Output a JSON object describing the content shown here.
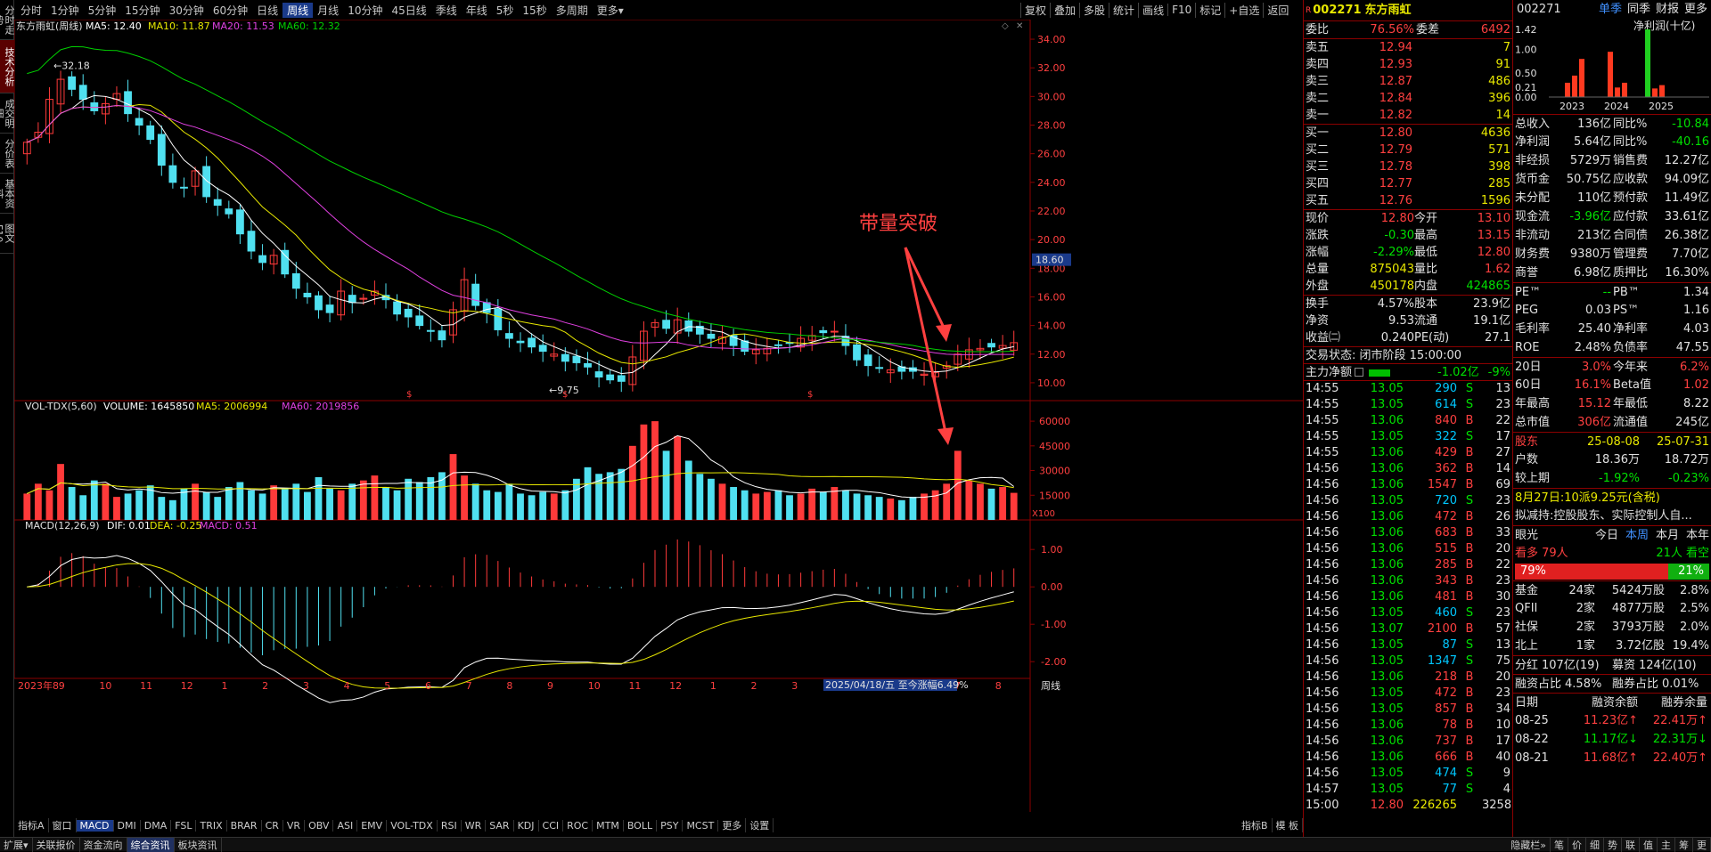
{
  "side_tabs": [
    "分时走势",
    "技术分析",
    "成交明细",
    "分价表",
    "基本资料",
    "图文F10"
  ],
  "side_active": 1,
  "periods": [
    "分时",
    "1分钟",
    "5分钟",
    "15分钟",
    "30分钟",
    "60分钟",
    "日线",
    "周线",
    "月线",
    "10分钟",
    "45日线",
    "季线",
    "年线",
    "5秒",
    "15秒",
    "多周期",
    "更多▾"
  ],
  "period_active": 7,
  "top_right": [
    "复权",
    "叠加",
    "多股",
    "统计",
    "画线",
    "F10",
    "标记",
    "+自选",
    "返回"
  ],
  "chart_legend": {
    "name": "东方雨虹(周线)",
    "ma5": "MA5: 12.40",
    "ma10": "MA10: 11.87",
    "ma20": "MA20: 11.53",
    "ma60": "MA60: 12.32",
    "vol": "VOL-TDX(5,60)",
    "volume": "VOLUME: 1645850",
    "vma5": "MA5: 2006994",
    "vma60": "MA60: 2019856",
    "macd": "MACD(12,26,9)",
    "dif": "DIF: 0.01",
    "dea": "DEA: -0.25",
    "macdv": "MACD: 0.51"
  },
  "annotations": {
    "breakout": "带量突破",
    "high": "32.18",
    "low": "9.75",
    "price_tag": "18.60",
    "range_info": "2025/04/18/五 至今涨幅6.49%",
    "x100": "X100",
    "corner_label": "周线"
  },
  "price_ticks": [
    "34.00",
    "32.00",
    "30.00",
    "28.00",
    "26.00",
    "24.00",
    "22.00",
    "20.00",
    "18.00",
    "16.00",
    "14.00",
    "12.00",
    "10.00"
  ],
  "vol_ticks": [
    "60000",
    "45000",
    "30000",
    "15000"
  ],
  "macd_ticks": [
    "1.00",
    "0.00",
    "-1.00",
    "-2.00"
  ],
  "x_labels": [
    "2023年8",
    "9",
    "10",
    "11",
    "12",
    "1",
    "2",
    "3",
    "4",
    "5",
    "6",
    "7",
    "8",
    "9",
    "10",
    "11",
    "12",
    "1",
    "2",
    "3",
    "4",
    "5",
    "6",
    "7",
    "8"
  ],
  "indicators": [
    "指标A",
    "窗口",
    "MACD",
    "DMI",
    "DMA",
    "FSL",
    "TRIX",
    "BRAR",
    "CR",
    "VR",
    "OBV",
    "ASI",
    "EMV",
    "VOL-TDX",
    "RSI",
    "WR",
    "SAR",
    "KDJ",
    "CCI",
    "ROC",
    "MTM",
    "BOLL",
    "PSY",
    "MCST",
    "更多",
    "设置"
  ],
  "indicator_active": 2,
  "indicator_right": [
    "指标B",
    "模 板"
  ],
  "chart_data": [
    {
      "type": "candlestick",
      "title": "东方雨虹(周线)",
      "period": "周线",
      "x": [
        "2023-08",
        "2023-09",
        "2023-10",
        "2023-11",
        "2023-12",
        "2024-01",
        "2024-02",
        "2024-03",
        "2024-04",
        "2024-05",
        "2024-06",
        "2024-07",
        "2024-08",
        "2024-09",
        "2024-10",
        "2024-11",
        "2024-12",
        "2025-01",
        "2025-02",
        "2025-03",
        "2025-04",
        "2025-05",
        "2025-06",
        "2025-07",
        "2025-08"
      ],
      "ylim": [
        9,
        34.5
      ],
      "weekly_close": [
        26.8,
        27.5,
        29.8,
        31.2,
        30.5,
        29.8,
        29.0,
        29.5,
        30.2,
        28.8,
        28.0,
        27.0,
        25.2,
        24.0,
        23.6,
        24.8,
        23.0,
        22.4,
        21.8,
        20.4,
        19.2,
        18.4,
        18.9,
        17.6,
        16.6,
        16.0,
        15.1,
        14.9,
        16.4,
        15.6,
        15.9,
        16.4,
        15.8,
        14.8,
        14.6,
        14.0,
        13.6,
        13.0,
        15.1,
        17.2,
        15.4,
        14.9,
        13.7,
        13.1,
        12.8,
        12.5,
        12.2,
        12.0,
        11.5,
        11.4,
        11.1,
        10.4,
        10.2,
        10.1,
        11.8,
        13.6,
        14.2,
        13.8,
        14.4,
        13.6,
        13.4,
        13.1,
        13.2,
        12.6,
        12.2,
        12.3,
        12.4,
        12.6,
        12.8,
        13.1,
        13.3,
        13.5,
        13.6,
        12.6,
        11.6,
        11.2,
        11.0,
        10.9,
        10.8,
        10.8,
        10.6,
        10.7,
        11.2,
        12.0,
        12.3,
        12.4,
        12.5,
        12.6,
        12.8
      ],
      "extremes": {
        "high": 32.18,
        "low": 9.75
      },
      "series": [
        {
          "name": "MA5",
          "last": 12.4,
          "color": "#ffffff"
        },
        {
          "name": "MA10",
          "last": 11.87,
          "color": "#e8e800"
        },
        {
          "name": "MA20",
          "last": 11.53,
          "color": "#e040e0"
        },
        {
          "name": "MA60",
          "last": 12.32,
          "color": "#00d000"
        }
      ]
    },
    {
      "type": "bar",
      "title": "VOL-TDX(5,60)",
      "ylim": [
        0,
        66000
      ],
      "unit": "X100",
      "values": [
        16000,
        22000,
        18000,
        34000,
        20000,
        15000,
        24000,
        22000,
        14000,
        16000,
        18000,
        21000,
        14000,
        12000,
        19000,
        22000,
        17000,
        14000,
        20000,
        23000,
        18000,
        16000,
        21000,
        19000,
        22000,
        17000,
        26000,
        19000,
        18000,
        22000,
        24000,
        27000,
        20000,
        18000,
        25000,
        23000,
        26000,
        29000,
        40000,
        27000,
        22000,
        18000,
        17000,
        22000,
        16000,
        15000,
        17000,
        16000,
        18000,
        25000,
        32000,
        28000,
        29000,
        31000,
        45000,
        58000,
        60000,
        42000,
        51000,
        36000,
        28000,
        25000,
        22000,
        20000,
        18000,
        16000,
        17000,
        18000,
        15000,
        16000,
        19000,
        17000,
        20000,
        18000,
        16000,
        15000,
        14000,
        13000,
        12000,
        14000,
        16000,
        18000,
        22000,
        42000,
        24000,
        22000,
        19000,
        20000,
        16458
      ],
      "series": [
        {
          "name": "VOLUME",
          "last": 1645850
        },
        {
          "name": "MA5",
          "last": 2006994
        },
        {
          "name": "MA60",
          "last": 2019856
        }
      ]
    },
    {
      "type": "bar",
      "title": "MACD(12,26,9)",
      "ylim": [
        -2.4,
        1.6
      ],
      "series": [
        {
          "name": "DIF",
          "last": 0.01
        },
        {
          "name": "DEA",
          "last": -0.25
        },
        {
          "name": "MACD",
          "last": 0.51
        }
      ]
    }
  ],
  "quote": {
    "code": "002271",
    "name": "东方雨虹",
    "wb_label": "委比",
    "wb": "76.56%",
    "wc_label": "委差",
    "wc": "6492",
    "asks": [
      [
        "卖五",
        "12.94",
        "7"
      ],
      [
        "卖四",
        "12.93",
        "91"
      ],
      [
        "卖三",
        "12.87",
        "486"
      ],
      [
        "卖二",
        "12.84",
        "396"
      ],
      [
        "卖一",
        "12.82",
        "14"
      ]
    ],
    "bids": [
      [
        "买一",
        "12.80",
        "4636"
      ],
      [
        "买二",
        "12.79",
        "571"
      ],
      [
        "买三",
        "12.78",
        "398"
      ],
      [
        "买四",
        "12.77",
        "285"
      ],
      [
        "买五",
        "12.76",
        "1596"
      ]
    ],
    "stats": [
      [
        "现价",
        "12.80",
        "今开",
        "13.10"
      ],
      [
        "涨跌",
        "-0.30",
        "最高",
        "13.15"
      ],
      [
        "涨幅",
        "-2.29%",
        "最低",
        "12.80"
      ],
      [
        "总量",
        "875043",
        "量比",
        "1.62"
      ],
      [
        "外盘",
        "450178",
        "内盘",
        "424865"
      ]
    ],
    "stats2": [
      [
        "换手",
        "4.57%",
        "股本",
        "23.9亿"
      ],
      [
        "净资",
        "9.53",
        "流通",
        "19.1亿"
      ],
      [
        "收益㈡",
        "0.240",
        "PE(动)",
        "27.1"
      ]
    ],
    "trade_status": "交易状态: 闭市阶段 15:00:00",
    "main_flow_label": "主力净额",
    "main_flow": "-1.02亿",
    "main_flow_pct": "-9%",
    "ticks": [
      [
        "14:55",
        "13.05",
        "290",
        "S",
        "13"
      ],
      [
        "14:55",
        "13.05",
        "614",
        "S",
        "23"
      ],
      [
        "14:55",
        "13.06",
        "840",
        "B",
        "22"
      ],
      [
        "14:55",
        "13.05",
        "322",
        "S",
        "17"
      ],
      [
        "14:55",
        "13.06",
        "429",
        "B",
        "27"
      ],
      [
        "14:56",
        "13.06",
        "362",
        "B",
        "14"
      ],
      [
        "14:56",
        "13.06",
        "1547",
        "B",
        "69"
      ],
      [
        "14:56",
        "13.05",
        "720",
        "S",
        "23"
      ],
      [
        "14:56",
        "13.06",
        "472",
        "B",
        "26"
      ],
      [
        "14:56",
        "13.06",
        "683",
        "B",
        "33"
      ],
      [
        "14:56",
        "13.06",
        "515",
        "B",
        "20"
      ],
      [
        "14:56",
        "13.06",
        "285",
        "B",
        "22"
      ],
      [
        "14:56",
        "13.06",
        "343",
        "B",
        "23"
      ],
      [
        "14:56",
        "13.06",
        "481",
        "B",
        "30"
      ],
      [
        "14:56",
        "13.05",
        "460",
        "S",
        "23"
      ],
      [
        "14:56",
        "13.07",
        "2100",
        "B",
        "57"
      ],
      [
        "14:56",
        "13.05",
        "87",
        "S",
        "13"
      ],
      [
        "14:56",
        "13.05",
        "1347",
        "S",
        "75"
      ],
      [
        "14:56",
        "13.06",
        "218",
        "B",
        "20"
      ],
      [
        "14:56",
        "13.05",
        "472",
        "B",
        "23"
      ],
      [
        "14:56",
        "13.05",
        "857",
        "B",
        "34"
      ],
      [
        "14:56",
        "13.06",
        "78",
        "B",
        "10"
      ],
      [
        "14:56",
        "13.06",
        "737",
        "B",
        "17"
      ],
      [
        "14:56",
        "13.06",
        "666",
        "B",
        "40"
      ],
      [
        "14:56",
        "13.05",
        "474",
        "S",
        "9"
      ],
      [
        "14:57",
        "13.05",
        "77",
        "S",
        "4"
      ],
      [
        "15:00",
        "12.80",
        "226265",
        "",
        "3258"
      ]
    ]
  },
  "info": {
    "code": "002271",
    "tabs": [
      "单季",
      "同季",
      "财报",
      "更多"
    ],
    "chart_title": "净利润(十亿)",
    "chart_ticks": [
      "1.42",
      "1.00",
      "0.50",
      "0.21",
      "0.00"
    ],
    "years": [
      "2023",
      "2024",
      "2025"
    ],
    "bars": [
      0.3,
      0.45,
      0.8,
      0.95,
      0.2,
      0.3,
      1.42,
      0.18,
      0.25
    ],
    "fin": [
      [
        "总收入",
        "136亿",
        "同比%",
        "-10.84"
      ],
      [
        "净利润",
        "5.64亿",
        "同比%",
        "-40.16"
      ],
      [
        "非经损",
        "5729万",
        "销售费",
        "12.27亿"
      ],
      [
        "货币金",
        "50.75亿",
        "应收款",
        "94.09亿"
      ],
      [
        "未分配",
        "110亿",
        "预付款",
        "11.49亿"
      ],
      [
        "现金流",
        "-3.96亿",
        "应付款",
        "33.61亿"
      ],
      [
        "非流动",
        "213亿",
        "合同债",
        "26.38亿"
      ],
      [
        "财务费",
        "9380万",
        "管理费",
        "7.70亿"
      ],
      [
        "商誉",
        "6.98亿",
        "质押比",
        "16.30%"
      ]
    ],
    "ratios": [
      [
        "PE™",
        "--",
        "PB™",
        "1.34"
      ],
      [
        "PEG",
        "0.03",
        "PS™",
        "1.16"
      ],
      [
        "毛利率",
        "25.40",
        "净利率",
        "4.03"
      ],
      [
        "ROE",
        "2.48%",
        "负债率",
        "47.55"
      ]
    ],
    "perf": [
      [
        "20日",
        "3.0%",
        "今年来",
        "6.2%"
      ],
      [
        "60日",
        "16.1%",
        "Beta值",
        "1.02"
      ],
      [
        "年最高",
        "15.12",
        "年最低",
        "8.22"
      ],
      [
        "总市值",
        "306亿",
        "流通值",
        "245亿"
      ]
    ],
    "holders": [
      [
        "股东",
        "25-08-08",
        "25-07-31"
      ],
      [
        "户数",
        "18.36万",
        "18.72万"
      ],
      [
        "较上期",
        "-1.92%",
        "-0.23%"
      ]
    ],
    "dividend": "8月27日:10派9.25元(含税)",
    "reduce": "拟减持:控股股东、实际控制人自...",
    "eye_label": "眼光",
    "eye_tabs": [
      "今日",
      "本周",
      "本月",
      "本年"
    ],
    "eye_active": 1,
    "bull": "看多 79人",
    "bear": "21人 看空",
    "bull_pct": 79,
    "bull_pct_text": "79%",
    "bear_pct_text": "21%",
    "inst": [
      [
        "基金",
        "24家",
        "5424万股",
        "2.8%"
      ],
      [
        "QFII",
        "2家",
        "4877万股",
        "2.5%"
      ],
      [
        "社保",
        "2家",
        "3793万股",
        "2.0%"
      ],
      [
        "北上",
        "1家",
        "3.72亿股",
        "19.4%"
      ]
    ],
    "fenhong": [
      "分红",
      "107亿(19)",
      "募资",
      "124亿(10)"
    ],
    "margin": [
      "融资占比",
      "4.58%",
      "融券占比",
      "0.01%"
    ],
    "mtable_head": [
      "日期",
      "融资余额",
      "融券余量"
    ],
    "mtable": [
      [
        "08-25",
        "11.23亿↑",
        "22.41万↑"
      ],
      [
        "08-22",
        "11.17亿↓",
        "22.31万↓"
      ],
      [
        "08-21",
        "11.68亿↑",
        "22.40万↑"
      ]
    ]
  },
  "bottom": [
    "扩展▾",
    "关联报价",
    "资金流向",
    "综合资讯",
    "板块资讯"
  ],
  "bottom_active": 3,
  "bottom_right": [
    "隐藏栏»",
    "笔",
    "价",
    "细",
    "势",
    "联",
    "值",
    "主",
    "筹",
    "更"
  ]
}
